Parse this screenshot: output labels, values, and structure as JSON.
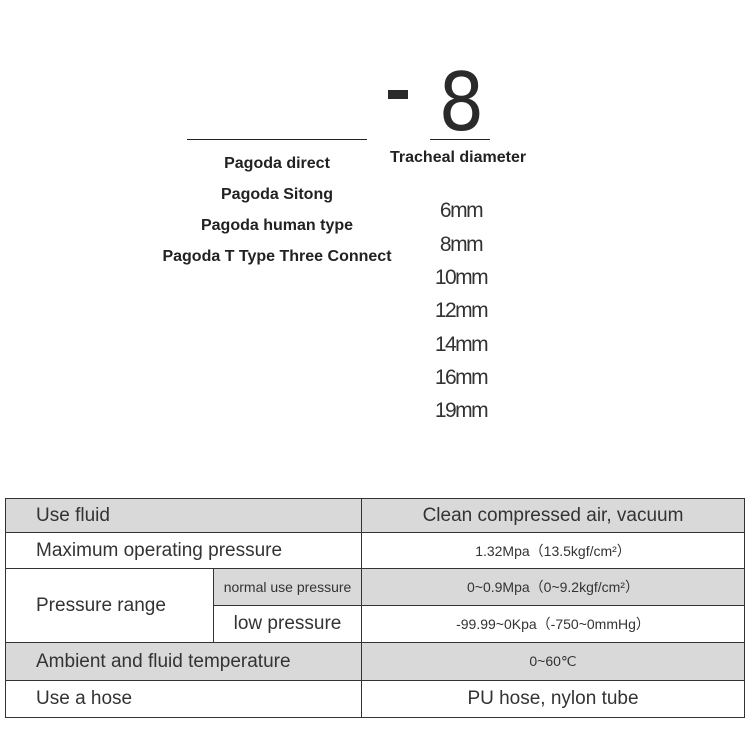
{
  "header": {
    "dash": "-",
    "number": "8",
    "tracheal_label": "Tracheal diameter"
  },
  "types": [
    "Pagoda direct",
    "Pagoda Sitong",
    "Pagoda human type",
    "Pagoda T Type Three Connect"
  ],
  "sizes": [
    "6mm",
    "8mm",
    "10mm",
    "12mm",
    "14mm",
    "16mm",
    "19mm"
  ],
  "table": {
    "use_fluid": {
      "label": "Use fluid",
      "value": "Clean compressed air, vacuum"
    },
    "max_pressure": {
      "label": "Maximum operating pressure",
      "value": "1.32Mpa（13.5kgf/cm²）"
    },
    "pressure_range": {
      "label": "Pressure range",
      "normal": {
        "label": "normal use pressure",
        "value": "0~0.9Mpa（0~9.2kgf/cm²）"
      },
      "low": {
        "label": "low pressure",
        "value": "-99.99~0Kpa（-750~0mmHg）"
      }
    },
    "temperature": {
      "label": "Ambient and fluid temperature",
      "value": "0~60℃"
    },
    "hose": {
      "label": "Use a hose",
      "value": "PU hose, nylon tube"
    }
  },
  "colors": {
    "row_gray": "#d9d9d9",
    "text": "#333333"
  }
}
